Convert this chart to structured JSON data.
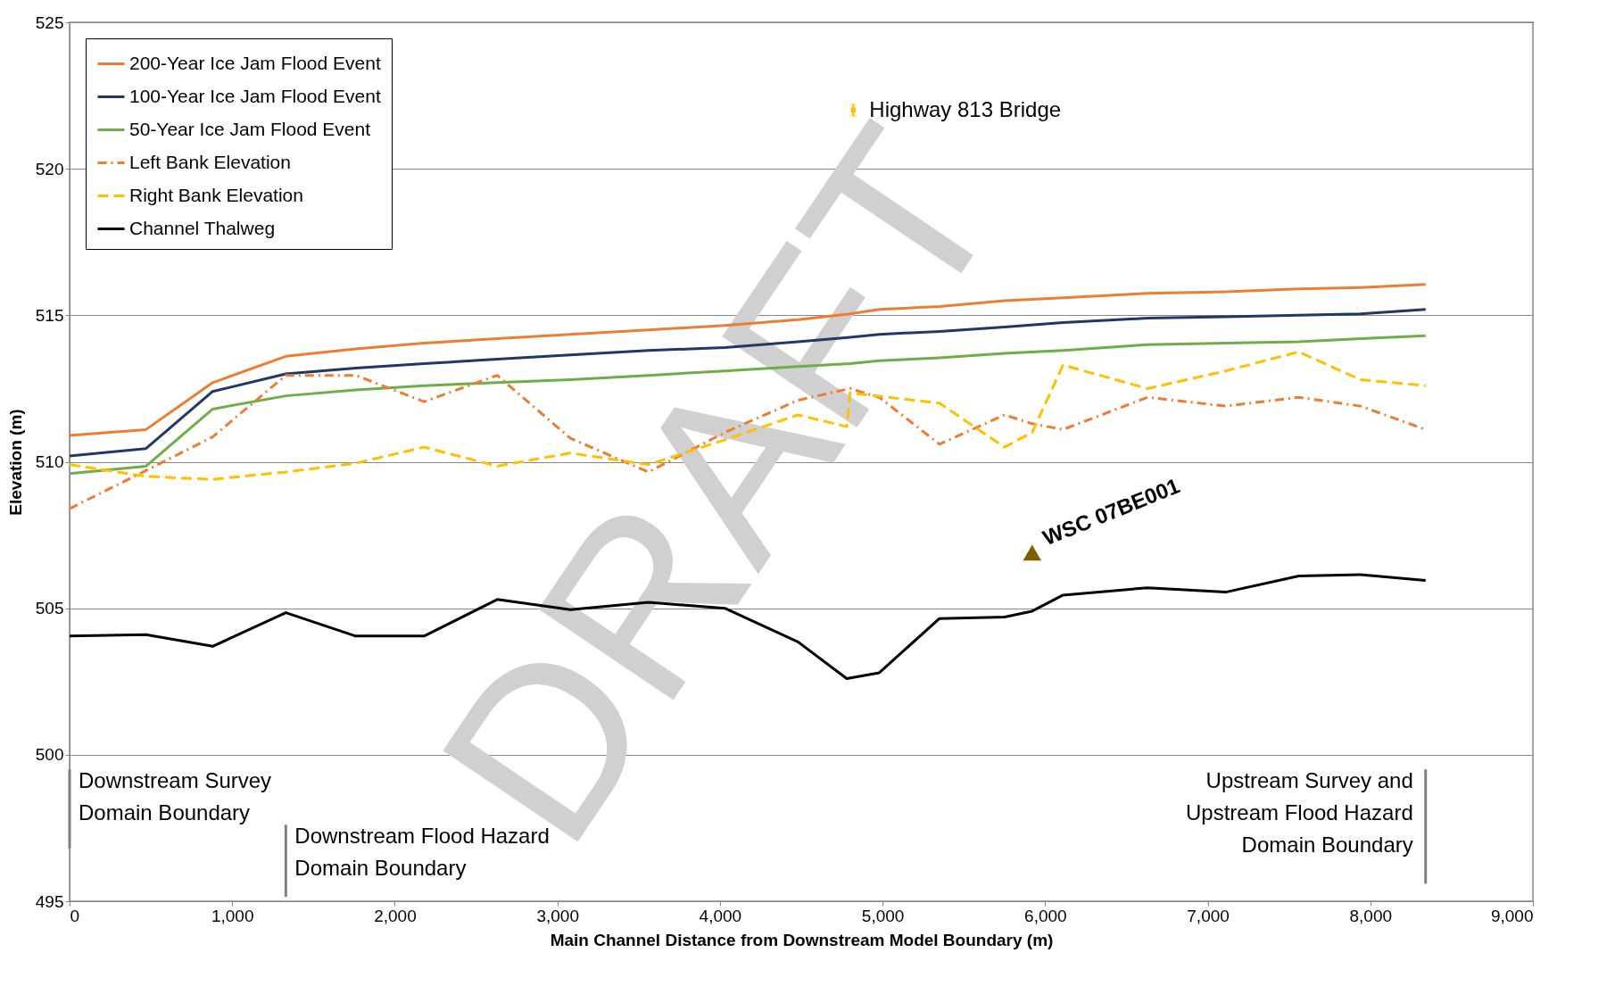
{
  "chart_data": {
    "type": "line",
    "xlabel": "Main Channel Distance from Downstream Model Boundary (m)",
    "ylabel": "Elevation (m)",
    "xlim": [
      0,
      9000
    ],
    "xticks": [
      0,
      {
        "value": 1000,
        "label": "1,000"
      },
      {
        "value": 2000,
        "label": "2,000"
      },
      {
        "value": 3000,
        "label": "3,000"
      },
      {
        "value": 4000,
        "label": "4,000"
      },
      {
        "value": 5000,
        "label": "5,000"
      },
      {
        "value": 6000,
        "label": "6,000"
      },
      {
        "value": 7000,
        "label": "7,000"
      },
      {
        "value": 8000,
        "label": "8,000"
      },
      {
        "value": 9000,
        "label": "9,000"
      }
    ],
    "ylim": [
      495,
      525
    ],
    "yticks": [
      495,
      500,
      505,
      510,
      515,
      520,
      525
    ],
    "grid": "y",
    "legend": "top left",
    "series": [
      {
        "name": "200-Year Ice Jam Flood Event",
        "color": "#ed7d31",
        "line_style": "solid",
        "x": [
          0,
          470,
          880,
          1330,
          1760,
          2180,
          2630,
          3080,
          3560,
          4030,
          4480,
          4800,
          4980,
          5350,
          5750,
          6110,
          6630,
          7110,
          7560,
          7940,
          8340
        ],
        "values": [
          510.9,
          511.1,
          512.7,
          513.6,
          513.85,
          514.05,
          514.2,
          514.35,
          514.5,
          514.65,
          514.85,
          515.05,
          515.2,
          515.3,
          515.5,
          515.6,
          515.75,
          515.8,
          515.9,
          515.95,
          516.05
        ]
      },
      {
        "name": "100-Year Ice Jam Flood Event",
        "color": "#203864",
        "line_style": "solid",
        "x": [
          0,
          470,
          880,
          1330,
          1760,
          2180,
          2630,
          3080,
          3560,
          4030,
          4480,
          4800,
          4980,
          5350,
          5750,
          6110,
          6630,
          7110,
          7560,
          7940,
          8340
        ],
        "values": [
          510.2,
          510.45,
          512.4,
          513.0,
          513.2,
          513.35,
          513.5,
          513.65,
          513.8,
          513.9,
          514.1,
          514.25,
          514.35,
          514.45,
          514.6,
          514.75,
          514.9,
          514.95,
          515.0,
          515.05,
          515.2
        ]
      },
      {
        "name": "50-Year Ice Jam Flood Event",
        "color": "#70ad47",
        "line_style": "solid",
        "x": [
          0,
          470,
          880,
          1330,
          1760,
          2180,
          2630,
          3080,
          3560,
          4030,
          4480,
          4800,
          4980,
          5350,
          5750,
          6110,
          6630,
          7110,
          7560,
          7940,
          8340
        ],
        "values": [
          509.6,
          509.85,
          511.8,
          512.25,
          512.45,
          512.6,
          512.7,
          512.8,
          512.95,
          513.1,
          513.25,
          513.35,
          513.45,
          513.55,
          513.7,
          513.8,
          514.0,
          514.05,
          514.1,
          514.2,
          514.3
        ]
      },
      {
        "name": "Left Bank Elevation",
        "color": "#ed7d31",
        "line_style": "dotted",
        "x": [
          0,
          470,
          880,
          1330,
          1760,
          2180,
          2630,
          3080,
          3560,
          4030,
          4480,
          4800,
          4980,
          5350,
          5750,
          5920,
          6110,
          6630,
          7110,
          7560,
          7940,
          8340
        ],
        "values": [
          508.4,
          509.7,
          510.85,
          512.95,
          512.95,
          512.05,
          512.95,
          510.8,
          509.65,
          511.0,
          512.1,
          512.5,
          512.2,
          510.6,
          511.6,
          511.3,
          511.1,
          512.2,
          511.9,
          512.2,
          511.9,
          511.1
        ]
      },
      {
        "name": "Right Bank Elevation",
        "color": "#ffc000",
        "line_style": "dashed",
        "x": [
          0,
          470,
          880,
          1330,
          1760,
          2180,
          2630,
          3080,
          3560,
          4030,
          4480,
          4780,
          4800,
          5350,
          5750,
          5920,
          6110,
          6630,
          7110,
          7560,
          7940,
          8340
        ],
        "values": [
          509.9,
          509.5,
          509.4,
          509.65,
          509.95,
          510.5,
          509.85,
          510.3,
          509.9,
          510.75,
          511.6,
          511.2,
          512.35,
          512.0,
          510.5,
          511.0,
          513.3,
          512.5,
          513.1,
          513.75,
          512.8,
          512.6
        ]
      },
      {
        "name": "Channel Thalweg",
        "color": "#000000",
        "line_style": "solid",
        "x": [
          0,
          470,
          880,
          1330,
          1760,
          2180,
          2630,
          3080,
          3560,
          4030,
          4480,
          4780,
          4980,
          5350,
          5750,
          5920,
          6110,
          6630,
          7110,
          7560,
          7940,
          8340
        ],
        "values": [
          504.05,
          504.1,
          503.7,
          504.85,
          504.05,
          504.05,
          505.3,
          504.95,
          505.2,
          505.0,
          503.85,
          502.6,
          502.8,
          504.65,
          504.7,
          504.9,
          505.45,
          505.7,
          505.55,
          506.1,
          506.15,
          505.95
        ]
      },
      {
        "type": "scatter",
        "color": "#7f6000",
        "marker": "triangle",
        "x": [
          5920
        ],
        "values": [
          506.9
        ]
      },
      {
        "type": "scatter",
        "color": "#ffc000",
        "marker": "square",
        "x": [
          4820
        ],
        "values": [
          522
        ],
        "errors": [
          0.2
        ]
      }
    ],
    "ref_lines": [
      {
        "axis": "x",
        "value": 0,
        "label": "Downstream Survey\nDomain Boundary",
        "color": "#808080"
      },
      {
        "axis": "x",
        "value": 1330,
        "label": "Downstream Flood Hazard\nDomain Boundary",
        "color": "#808080"
      },
      {
        "axis": "x",
        "value": 8340,
        "label": "Upstream Survey and\nUpstream Flood Hazard\nDomain Boundary",
        "color": "#808080"
      }
    ],
    "annotations": [
      {
        "text": "Highway 813 Bridge",
        "x": 4820,
        "y": 522
      },
      {
        "text": "WSC 07BE001",
        "x": 5920,
        "y": 506.9
      },
      "DRAFT"
    ]
  }
}
